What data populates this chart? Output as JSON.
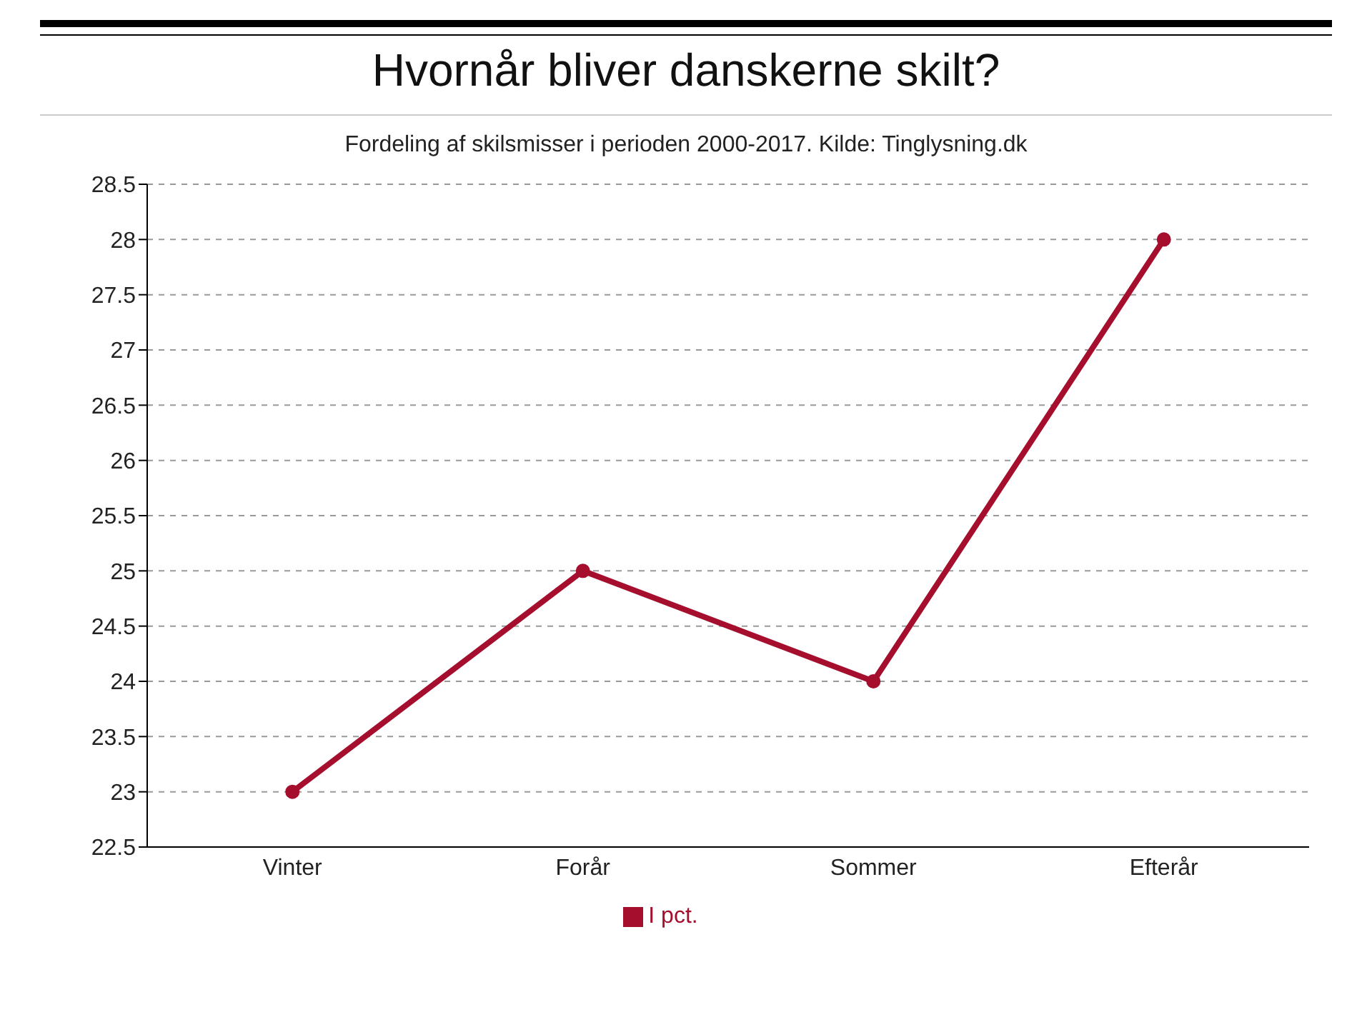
{
  "chart_data": {
    "type": "line",
    "title": "Hvornår bliver danskerne skilt?",
    "subtitle": "Fordeling af skilsmisser i perioden 2000-2017. Kilde: Tinglysning.dk",
    "categories": [
      "Vinter",
      "Forår",
      "Sommer",
      "Efterår"
    ],
    "series": [
      {
        "name": "I pct.",
        "color": "#a50f2d",
        "values": [
          23,
          25,
          24,
          28
        ]
      }
    ],
    "ylim": [
      22.5,
      28.5
    ],
    "yticks": [
      22.5,
      23,
      23.5,
      24,
      24.5,
      25,
      25.5,
      26,
      26.5,
      27,
      27.5,
      28,
      28.5
    ],
    "grid": "y",
    "legend": "bottom",
    "marker": "circle",
    "line_style": "solid"
  }
}
